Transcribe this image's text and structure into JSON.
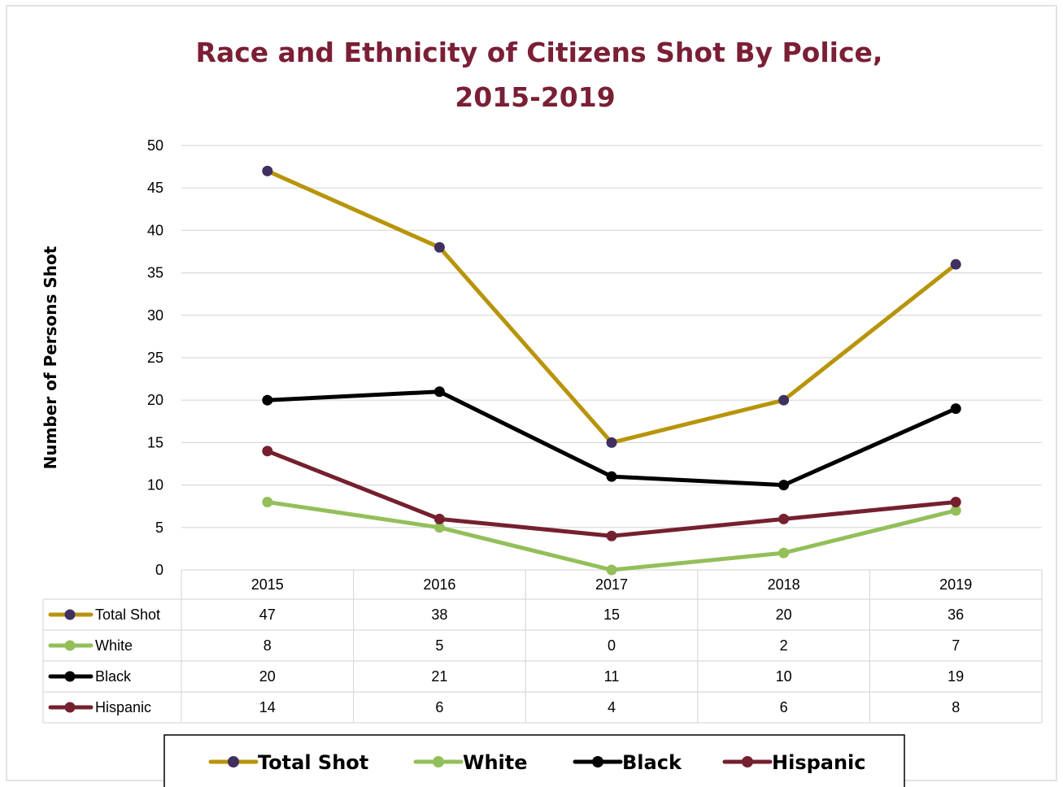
{
  "chart_data": {
    "type": "line",
    "title_line1": "Race and Ethnicity of Citizens Shot By Police,",
    "title_line2": "2015-2019",
    "ylabel": "Number of Persons Shot",
    "xlabel": "",
    "categories": [
      "2015",
      "2016",
      "2017",
      "2018",
      "2019"
    ],
    "ylim": [
      0,
      50
    ],
    "yticks": [
      0,
      5,
      10,
      15,
      20,
      25,
      30,
      35,
      40,
      45,
      50
    ],
    "grid": true,
    "legend_position": "bottom",
    "series": [
      {
        "name": "Total Shot",
        "values": [
          47,
          38,
          15,
          20,
          36
        ],
        "line_color": "#b8940a",
        "marker_color": "#3f3060"
      },
      {
        "name": "White",
        "values": [
          8,
          5,
          0,
          2,
          7
        ],
        "line_color": "#93bf5a",
        "marker_color": "#93bf5a"
      },
      {
        "name": "Black",
        "values": [
          20,
          21,
          11,
          10,
          19
        ],
        "line_color": "#000000",
        "marker_color": "#000000"
      },
      {
        "name": "Hispanic",
        "values": [
          14,
          6,
          4,
          6,
          8
        ],
        "line_color": "#75202f",
        "marker_color": "#75202f"
      }
    ],
    "data_table": true
  }
}
